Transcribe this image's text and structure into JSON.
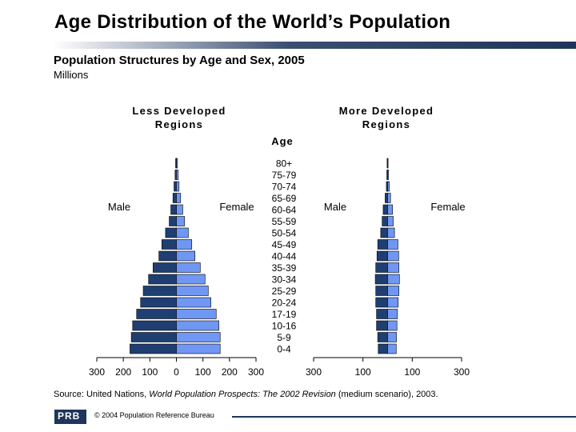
{
  "title": "Age Distribution of the World’s Population",
  "subtitle": "Population Structures by Age and Sex, 2005",
  "units": "Millions",
  "colors": {
    "male": "#1f3f73",
    "female": "#6f97f3",
    "title_rule_dark": "#1f3559",
    "title_rule_light": "#ffffff"
  },
  "chart_data": [
    {
      "type": "bar",
      "name": "Less Developed Regions",
      "orientation": "horizontal-pyramid",
      "age_header": "Age",
      "categories": [
        "80+",
        "75-79",
        "70-74",
        "65-69",
        "60-64",
        "55-59",
        "50-54",
        "45-49",
        "40-44",
        "35-39",
        "30-34",
        "25-29",
        "20-24",
        "17-19",
        "10-16",
        "5-9",
        "0-4"
      ],
      "series": [
        {
          "name": "Male",
          "values": [
            3,
            5,
            9,
            13,
            21,
            27,
            41,
            55,
            66,
            88,
            105,
            125,
            135,
            150,
            165,
            170,
            175
          ]
        },
        {
          "name": "Female",
          "values": [
            4,
            7,
            10,
            16,
            24,
            31,
            45,
            58,
            70,
            90,
            108,
            120,
            130,
            150,
            160,
            165,
            165
          ]
        }
      ],
      "xlim": [
        -300,
        300
      ],
      "xticks": [
        -300,
        -200,
        -100,
        0,
        100,
        200,
        300
      ],
      "xtick_labels": [
        "300",
        "200",
        "100",
        "0",
        "100",
        "200",
        "300"
      ]
    },
    {
      "type": "bar",
      "name": "More Developed Regions",
      "orientation": "horizontal-pyramid",
      "categories": [
        "80+",
        "75-79",
        "70-74",
        "65-69",
        "60-64",
        "55-59",
        "50-54",
        "45-49",
        "40-44",
        "35-39",
        "30-34",
        "25-29",
        "20-24",
        "17-19",
        "10-16",
        "5-9",
        "0-4"
      ],
      "series": [
        {
          "name": "Male",
          "values": [
            2,
            3,
            5,
            10,
            18,
            22,
            28,
            40,
            43,
            48,
            50,
            48,
            48,
            45,
            45,
            40,
            38
          ]
        },
        {
          "name": "Female",
          "values": [
            2,
            4,
            7,
            12,
            20,
            23,
            28,
            42,
            45,
            46,
            48,
            46,
            43,
            40,
            38,
            36,
            35
          ]
        }
      ],
      "xlim": [
        -300,
        300
      ],
      "xticks": [
        -300,
        -100,
        100,
        300
      ],
      "xtick_labels": [
        "300",
        "100",
        "100",
        "300"
      ]
    }
  ],
  "labels": {
    "less_region": "Less Developed\nRegions",
    "more_region": "More Developed\nRegions",
    "male": "Male",
    "female": "Female"
  },
  "source": {
    "prefix": "Source: United Nations, ",
    "italic": "World Population Prospects: The 2002 Revision",
    "suffix": " (medium scenario), 2003."
  },
  "footer": {
    "logo_text": "PRB",
    "copyright": "© 2004 Population Reference Bureau"
  }
}
